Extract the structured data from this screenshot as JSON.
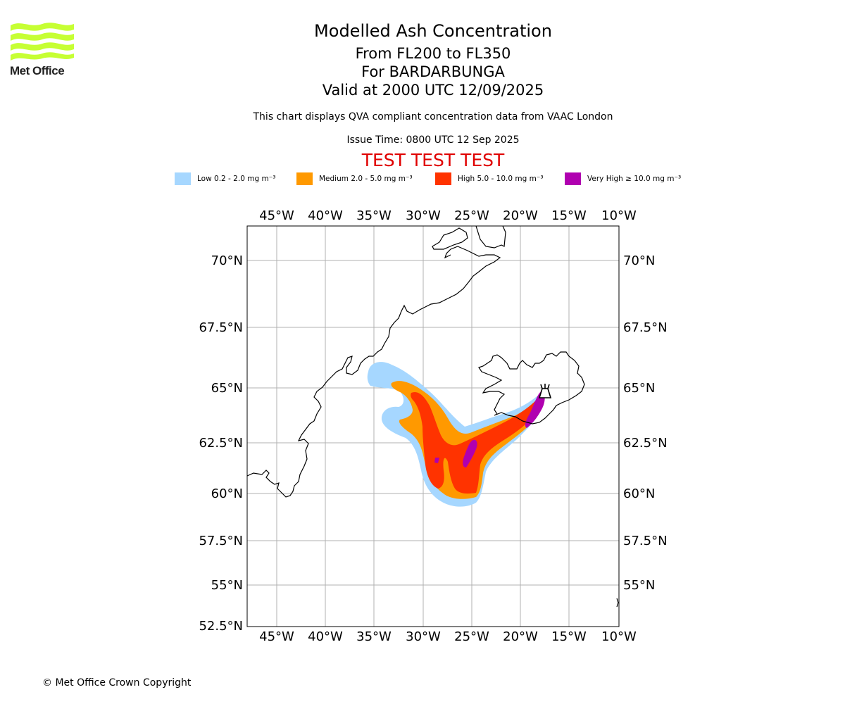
{
  "logo": {
    "text": "Met Office",
    "wave_color": "#c6ff33"
  },
  "title": {
    "line1": "Modelled Ash Concentration",
    "line2": "From FL200 to FL350",
    "line3": "For BARDARBUNGA",
    "line4": "Valid at 2000 UTC 12/09/2025"
  },
  "subtitle": "This chart displays QVA compliant concentration data from VAAC London",
  "issue_time": "Issue Time: 0800 UTC 12 Sep 2025",
  "test_banner": "TEST TEST TEST",
  "legend": [
    {
      "label": "Low 0.2 - 2.0 mg m⁻³",
      "color": "#a6d7ff"
    },
    {
      "label": "Medium 2.0 - 5.0 mg m⁻³",
      "color": "#ff9900"
    },
    {
      "label": "High 5.0 - 10.0 mg m⁻³",
      "color": "#ff3300"
    },
    {
      "label": "Very High  ≥  10.0 mg m⁻³",
      "color": "#b000b0"
    }
  ],
  "map": {
    "longitude_ticks": [
      "45°W",
      "40°W",
      "35°W",
      "30°W",
      "25°W",
      "20°W",
      "15°W",
      "10°W"
    ],
    "latitude_ticks_left": [
      "70°N",
      "67.5°N",
      "65°N",
      "62.5°N",
      "60°N",
      "57.5°N",
      "55°N",
      "52.5°N"
    ],
    "latitude_ticks_right": [
      "70°N",
      "67.5°N",
      "65°N",
      "62.5°N",
      "60°N",
      "57.5°N",
      "55°N"
    ],
    "grid": true,
    "volcano_symbol": "volcano-icon"
  },
  "copyright": "© Met Office Crown Copyright"
}
